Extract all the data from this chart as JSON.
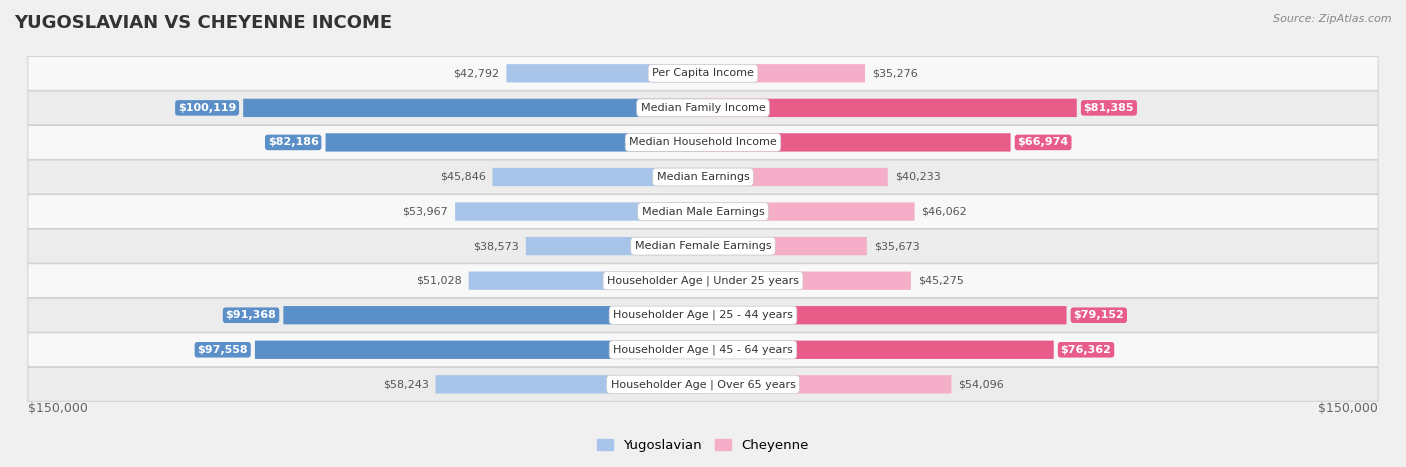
{
  "title": "YUGOSLAVIAN VS CHEYENNE INCOME",
  "source": "Source: ZipAtlas.com",
  "categories": [
    "Per Capita Income",
    "Median Family Income",
    "Median Household Income",
    "Median Earnings",
    "Median Male Earnings",
    "Median Female Earnings",
    "Householder Age | Under 25 years",
    "Householder Age | 25 - 44 years",
    "Householder Age | 45 - 64 years",
    "Householder Age | Over 65 years"
  ],
  "yugoslavian_values": [
    42792,
    100119,
    82186,
    45846,
    53967,
    38573,
    51028,
    91368,
    97558,
    58243
  ],
  "cheyenne_values": [
    35276,
    81385,
    66974,
    40233,
    46062,
    35673,
    45275,
    79152,
    76362,
    54096
  ],
  "yugoslavian_labels": [
    "$42,792",
    "$100,119",
    "$82,186",
    "$45,846",
    "$53,967",
    "$38,573",
    "$51,028",
    "$91,368",
    "$97,558",
    "$58,243"
  ],
  "cheyenne_labels": [
    "$35,276",
    "$81,385",
    "$66,974",
    "$40,233",
    "$46,062",
    "$35,673",
    "$45,275",
    "$79,152",
    "$76,362",
    "$54,096"
  ],
  "max_value": 150000,
  "yugo_color_light": "#a8c4e8",
  "yugo_color_dark": "#5b8fc8",
  "cheyenne_color_light": "#f5aec8",
  "cheyenne_color_dark": "#e85c8a",
  "yugo_dark_threshold": 80000,
  "cheyenne_dark_threshold": 65000,
  "bar_height": 0.52,
  "background_color": "#f0f0f0",
  "row_bg_even": "#f8f8f8",
  "row_bg_odd": "#ececec",
  "xlabel_left": "$150,000",
  "xlabel_right": "$150,000",
  "legend_label_yugo": "Yugoslavian",
  "legend_label_chey": "Cheyenne",
  "title_fontsize": 13,
  "label_fontsize": 8,
  "category_fontsize": 8
}
